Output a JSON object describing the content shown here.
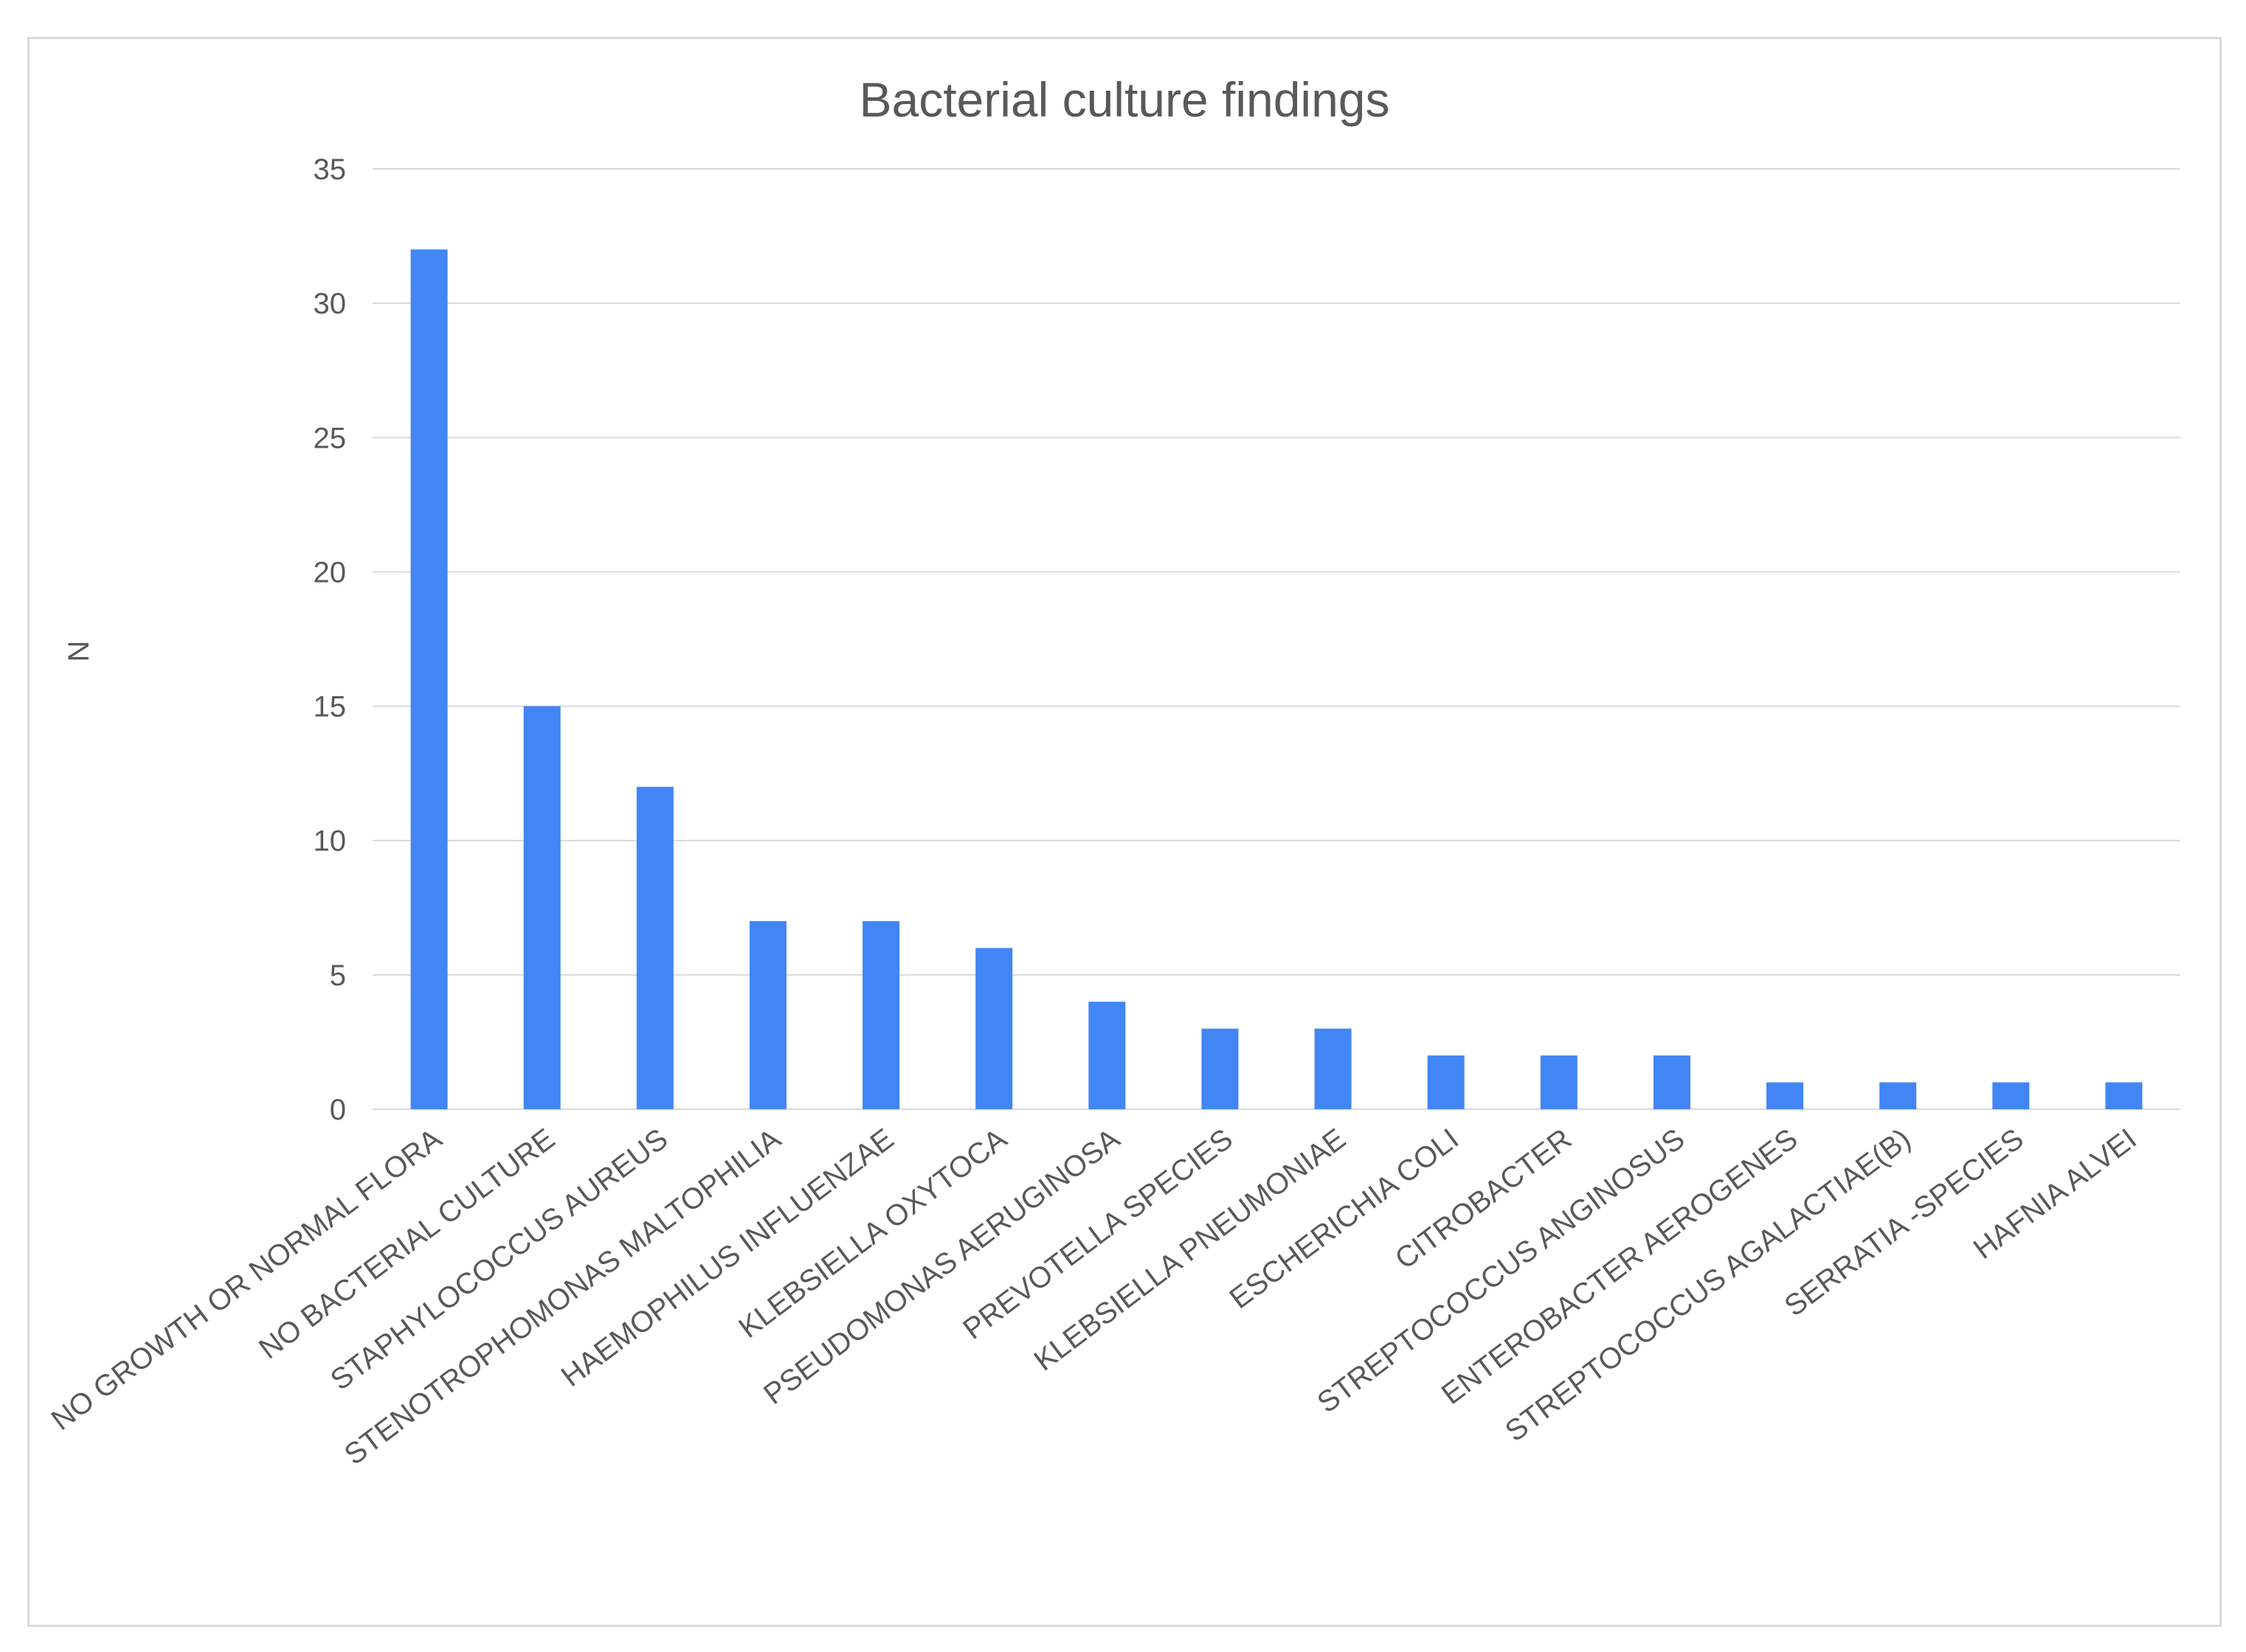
{
  "chart_data": {
    "type": "bar",
    "title": "Bacterial culture findings",
    "xlabel": "",
    "ylabel": "N",
    "ylim": [
      0,
      35
    ],
    "yticks": [
      0,
      5,
      10,
      15,
      20,
      25,
      30,
      35
    ],
    "grid": true,
    "legend": "none",
    "bar_color": "#4285F4",
    "categories": [
      "NO GROWTH OR NORMAL FLORA",
      "NO BACTERIAL CULTURE",
      "STAPHYLOCOCCUS AUREUS",
      "STENOTROPHOMONAS MALTOPHILIA",
      "HAEMOPHILUS INFLUENZAE",
      "KLEBSIELLA OXYTOCA",
      "PSEUDOMONAS AERUGINOSA",
      "PREVOTELLA SPECIES",
      "KLEBSIELLA PNEUMONIAE",
      "ESCHERICHIA COLI",
      "CITROBACTER",
      "STREPTOCOCCUS ANGINOSUS",
      "ENTEROBACTER AEROGENES",
      "STREPTOCOCCUS AGALACTIAE(B)",
      "SERRATIA -SPECIES",
      "HAFNIA ALVEI"
    ],
    "values": [
      32,
      15,
      12,
      7,
      7,
      6,
      4,
      3,
      3,
      2,
      2,
      2,
      1,
      1,
      1,
      1
    ]
  }
}
